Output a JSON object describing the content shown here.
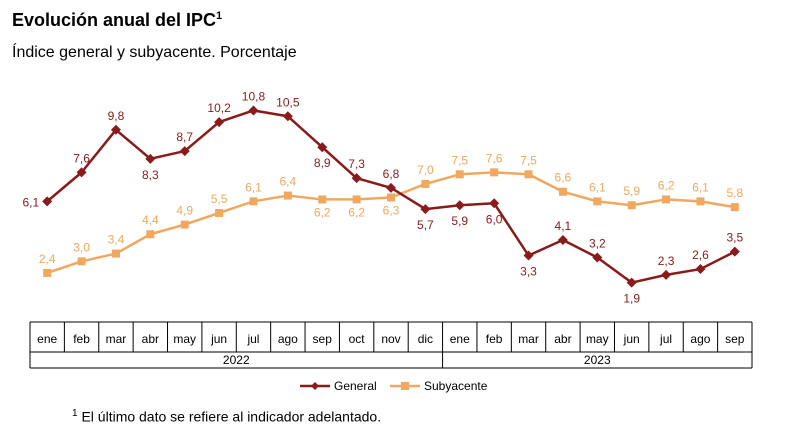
{
  "title": "Evolución anual del IPC",
  "title_sup": "1",
  "subtitle": "Índice general y subyacente. Porcentaje",
  "footnote_sup": "1",
  "footnote": "El último dato se refiere al indicador adelantado.",
  "colors": {
    "general": "#8b1a1a",
    "subyacente": "#f0a860",
    "axis": "#000000"
  },
  "chart_data": {
    "type": "line",
    "categories": [
      "ene",
      "feb",
      "mar",
      "abr",
      "may",
      "jun",
      "jul",
      "ago",
      "sep",
      "oct",
      "nov",
      "dic",
      "ene",
      "feb",
      "mar",
      "abr",
      "may",
      "jun",
      "jul",
      "ago",
      "sep"
    ],
    "year_groups": [
      {
        "label": "2022",
        "start": 0,
        "end": 11
      },
      {
        "label": "2023",
        "start": 12,
        "end": 20
      }
    ],
    "series": [
      {
        "name": "General",
        "values": [
          6.1,
          7.6,
          9.8,
          8.3,
          8.7,
          10.2,
          10.8,
          10.5,
          8.9,
          7.3,
          6.8,
          5.7,
          5.9,
          6.0,
          3.3,
          4.1,
          3.2,
          1.9,
          2.3,
          2.6,
          3.5
        ]
      },
      {
        "name": "Subyacente",
        "values": [
          2.4,
          3.0,
          3.4,
          4.4,
          4.9,
          5.5,
          6.1,
          6.4,
          6.2,
          6.2,
          6.3,
          7.0,
          7.5,
          7.6,
          7.5,
          6.6,
          6.1,
          5.9,
          6.2,
          6.1,
          5.8
        ]
      }
    ],
    "general_labels": [
      "6,1",
      "7,6",
      "9,8",
      "8,3",
      "8,7",
      "10,2",
      "10,8",
      "10,5",
      "8,9",
      "7,3",
      "6,8",
      "5,7",
      "5,9",
      "6,0",
      "3,3",
      "4,1",
      "3,2",
      "1,9",
      "2,3",
      "2,6",
      "3,5"
    ],
    "subyacente_labels": [
      "2,4",
      "3,0",
      "3,4",
      "4,4",
      "4,9",
      "5,5",
      "6,1",
      "6,4",
      "6,2",
      "6,2",
      "6,3",
      "7,0",
      "7,5",
      "7,6",
      "7,5",
      "6,6",
      "6,1",
      "5,9",
      "6,2",
      "6,1",
      "5,8"
    ],
    "ylim": [
      1.0,
      11.6
    ],
    "grid": false,
    "legend_position": "bottom-center"
  }
}
